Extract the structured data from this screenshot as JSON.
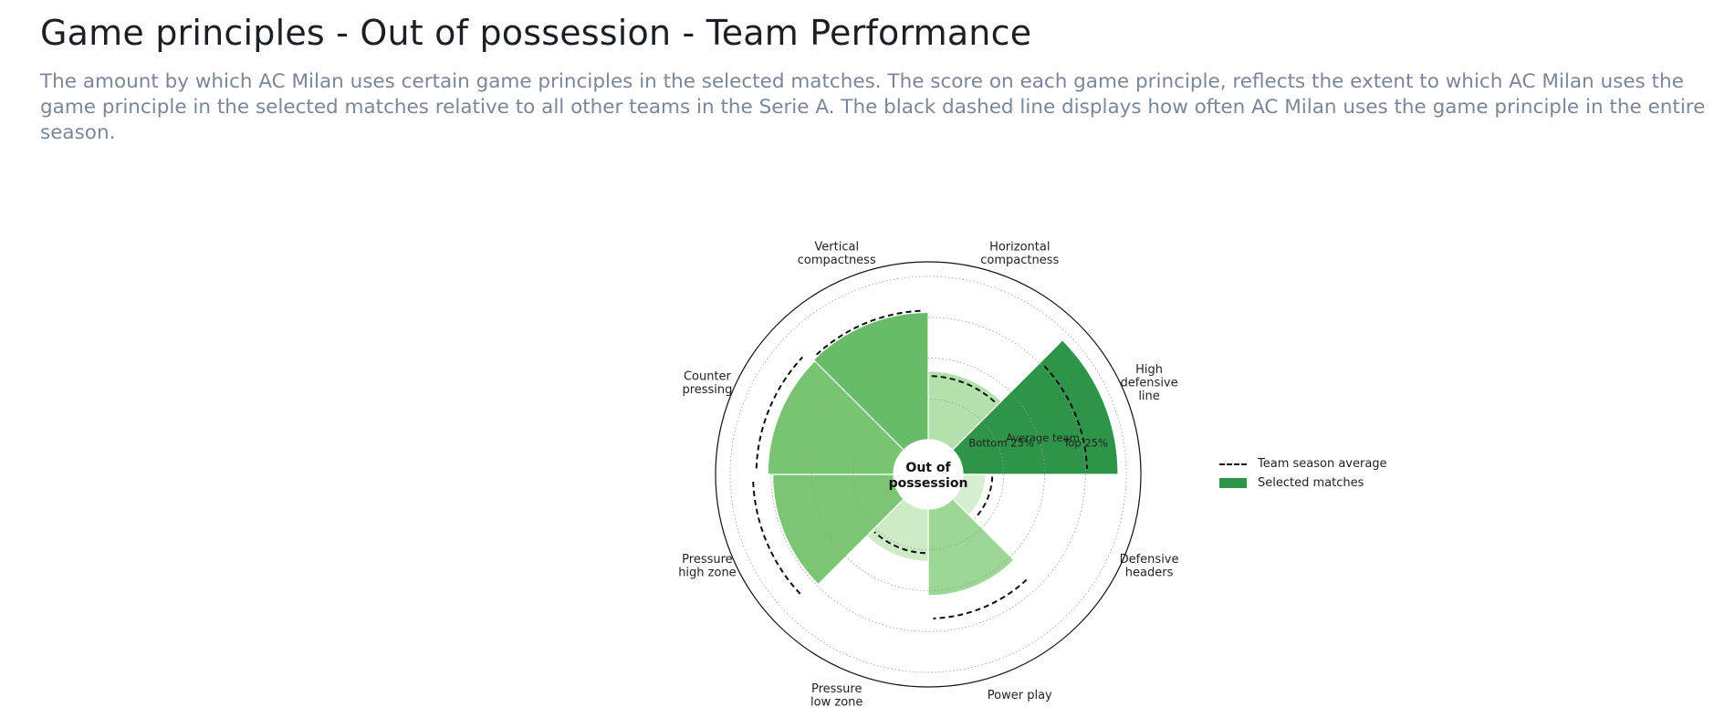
{
  "header": {
    "title": "Game principles - Out of possession - Team Performance",
    "description": "The amount by which AC Milan uses certain game principles in the selected matches. The score on each game principle, reflects the extent to which AC Milan uses the game principle in the selected matches relative to all other teams in the Serie A. The black dashed line displays how often AC Milan uses the game principle in the entire season."
  },
  "chart_data": {
    "type": "polar-bar",
    "center_label_line1": "Out of",
    "center_label_line2": "possession",
    "categories": [
      {
        "label_lines": [
          "Horizontal",
          "compactness"
        ],
        "value": 0.42,
        "season_average": 0.39,
        "color": "#b3e0ab"
      },
      {
        "label_lines": [
          "High",
          "defensive",
          "line"
        ],
        "value": 0.95,
        "season_average": 0.76,
        "color": "#2e9448"
      },
      {
        "label_lines": [
          "Defensive",
          "headers"
        ],
        "value": 0.14,
        "season_average": 0.18,
        "color": "#d6efd0"
      },
      {
        "label_lines": [
          "Power play"
        ],
        "value": 0.53,
        "season_average": 0.67,
        "color": "#9cd795"
      },
      {
        "label_lines": [
          "Pressure",
          "low zone"
        ],
        "value": 0.32,
        "season_average": 0.27,
        "color": "#cdebc5"
      },
      {
        "label_lines": [
          "Pressure",
          "high zone"
        ],
        "value": 0.74,
        "season_average": 0.86,
        "color": "#7cc673"
      },
      {
        "label_lines": [
          "Counter",
          "pressing"
        ],
        "value": 0.77,
        "season_average": 0.84,
        "color": "#78c571"
      },
      {
        "label_lines": [
          "Vertical",
          "compactness"
        ],
        "value": 0.78,
        "season_average": 0.79,
        "color": "#67bd67"
      }
    ],
    "reference_levels": [
      {
        "label": "Bottom 25%",
        "value": 0.25
      },
      {
        "label": "Average team",
        "value": 0.5
      },
      {
        "label": "Top 25%",
        "value": 0.75
      }
    ],
    "range": [
      0,
      1
    ]
  },
  "legend": {
    "season_average_label": "Team season average",
    "selected_matches_label": "Selected matches"
  },
  "colors": {
    "selected_matches": "#2e9448",
    "season_average_line": "#111111"
  }
}
